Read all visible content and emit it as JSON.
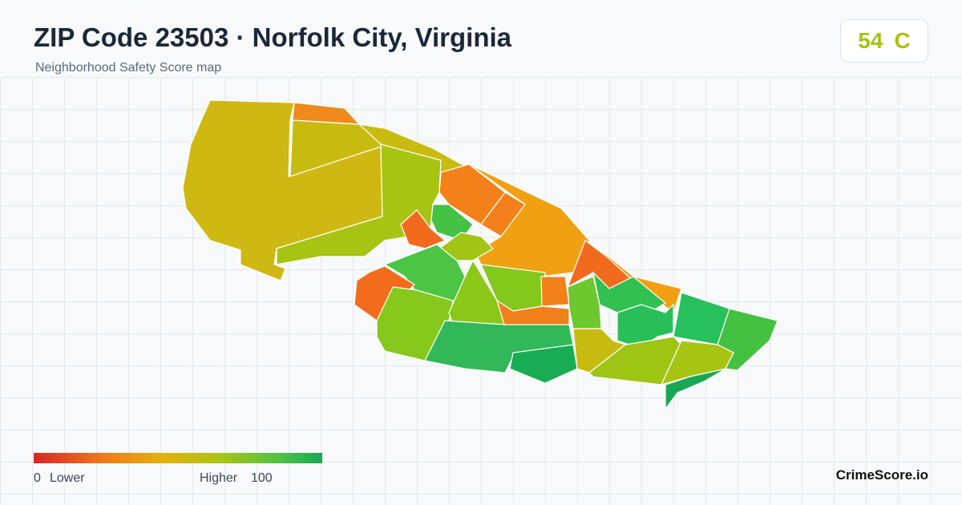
{
  "header": {
    "title": "ZIP Code 23503 · Norfolk City, Virginia",
    "subtitle": "Neighborhood Safety Score map"
  },
  "score": {
    "value": 54,
    "grade": "C"
  },
  "legend": {
    "min": 0,
    "min_label": "Lower",
    "max_label": "Higher",
    "max": 100
  },
  "brand": "CrimeScore.io"
}
